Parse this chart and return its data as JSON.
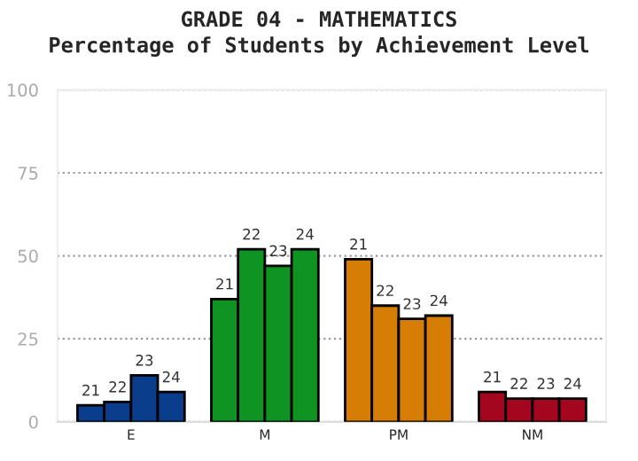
{
  "chart_data": {
    "type": "bar",
    "title": "GRADE 04 - MATHEMATICS",
    "subtitle": "Percentage of Students by Achievement Level",
    "categories": [
      "E",
      "M",
      "PM",
      "NM"
    ],
    "series": [
      {
        "name": "21",
        "colors": [
          "#0a3d8c",
          "#0f9423",
          "#d67d06",
          "#a3061e"
        ],
        "values": [
          5,
          37,
          49,
          9
        ]
      },
      {
        "name": "22",
        "colors": [
          "#0a3d8c",
          "#0f9423",
          "#d67d06",
          "#a3061e"
        ],
        "values": [
          6,
          52,
          35,
          7
        ]
      },
      {
        "name": "23",
        "colors": [
          "#0a3d8c",
          "#0f9423",
          "#d67d06",
          "#a3061e"
        ],
        "values": [
          14,
          47,
          31,
          7
        ]
      },
      {
        "name": "24",
        "colors": [
          "#0a3d8c",
          "#0f9423",
          "#d67d06",
          "#a3061e"
        ],
        "values": [
          9,
          52,
          32,
          7
        ]
      }
    ],
    "ylim": [
      0,
      100
    ],
    "yticks": [
      0,
      25,
      50,
      75,
      100
    ],
    "grid": "y",
    "legend": false
  }
}
